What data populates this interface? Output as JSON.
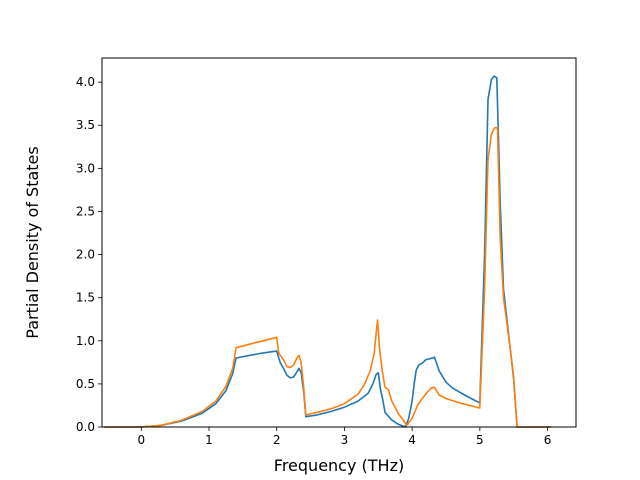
{
  "chart_data": {
    "type": "line",
    "title": "",
    "xlabel": "Frequency (THz)",
    "ylabel": "Partial Density of States",
    "xlim": [
      -0.58,
      6.42
    ],
    "ylim": [
      0,
      4.28
    ],
    "xticks": [
      "0",
      "1",
      "2",
      "3",
      "4",
      "5",
      "6"
    ],
    "xtick_values": [
      0,
      1,
      2,
      3,
      4,
      5,
      6
    ],
    "yticks": [
      "0.0",
      "0.5",
      "1.0",
      "1.5",
      "2.0",
      "2.5",
      "3.0",
      "3.5",
      "4.0"
    ],
    "ytick_values": [
      0,
      0.5,
      1.0,
      1.5,
      2.0,
      2.5,
      3.0,
      3.5,
      4.0
    ],
    "grid": false,
    "legend": "none",
    "series": [
      {
        "color": "#1f77b4",
        "points": [
          [
            -0.55,
            0
          ],
          [
            0,
            0
          ],
          [
            0.3,
            0.02
          ],
          [
            0.6,
            0.07
          ],
          [
            0.9,
            0.16
          ],
          [
            1.1,
            0.27
          ],
          [
            1.25,
            0.42
          ],
          [
            1.35,
            0.62
          ],
          [
            1.4,
            0.8
          ],
          [
            1.6,
            0.83
          ],
          [
            1.8,
            0.86
          ],
          [
            2.0,
            0.88
          ],
          [
            2.05,
            0.75
          ],
          [
            2.1,
            0.68
          ],
          [
            2.15,
            0.6
          ],
          [
            2.2,
            0.57
          ],
          [
            2.25,
            0.58
          ],
          [
            2.3,
            0.64
          ],
          [
            2.33,
            0.68
          ],
          [
            2.36,
            0.63
          ],
          [
            2.4,
            0.4
          ],
          [
            2.43,
            0.12
          ],
          [
            2.6,
            0.14
          ],
          [
            2.8,
            0.18
          ],
          [
            3.0,
            0.23
          ],
          [
            3.2,
            0.3
          ],
          [
            3.35,
            0.39
          ],
          [
            3.42,
            0.5
          ],
          [
            3.47,
            0.61
          ],
          [
            3.5,
            0.63
          ],
          [
            3.53,
            0.45
          ],
          [
            3.57,
            0.3
          ],
          [
            3.6,
            0.17
          ],
          [
            3.7,
            0.08
          ],
          [
            3.8,
            0.03
          ],
          [
            3.9,
            0.0
          ],
          [
            3.95,
            0.1
          ],
          [
            4.0,
            0.3
          ],
          [
            4.03,
            0.5
          ],
          [
            4.06,
            0.66
          ],
          [
            4.1,
            0.72
          ],
          [
            4.15,
            0.74
          ],
          [
            4.2,
            0.78
          ],
          [
            4.25,
            0.79
          ],
          [
            4.3,
            0.8
          ],
          [
            4.33,
            0.81
          ],
          [
            4.4,
            0.65
          ],
          [
            4.5,
            0.52
          ],
          [
            4.6,
            0.45
          ],
          [
            4.8,
            0.36
          ],
          [
            5.0,
            0.28
          ],
          [
            5.07,
            2.0
          ],
          [
            5.12,
            3.8
          ],
          [
            5.17,
            4.03
          ],
          [
            5.21,
            4.07
          ],
          [
            5.25,
            4.05
          ],
          [
            5.3,
            2.6
          ],
          [
            5.35,
            1.6
          ],
          [
            5.45,
            0.9
          ],
          [
            5.5,
            0.55
          ],
          [
            5.55,
            0
          ],
          [
            6.05,
            0
          ]
        ]
      },
      {
        "color": "#ff7f0e",
        "points": [
          [
            -0.55,
            0
          ],
          [
            0,
            0
          ],
          [
            0.3,
            0.02
          ],
          [
            0.6,
            0.08
          ],
          [
            0.9,
            0.18
          ],
          [
            1.1,
            0.3
          ],
          [
            1.25,
            0.47
          ],
          [
            1.35,
            0.68
          ],
          [
            1.4,
            0.92
          ],
          [
            1.6,
            0.96
          ],
          [
            1.8,
            1.0
          ],
          [
            2.0,
            1.04
          ],
          [
            2.03,
            0.86
          ],
          [
            2.1,
            0.78
          ],
          [
            2.15,
            0.7
          ],
          [
            2.2,
            0.69
          ],
          [
            2.25,
            0.72
          ],
          [
            2.3,
            0.8
          ],
          [
            2.33,
            0.83
          ],
          [
            2.36,
            0.75
          ],
          [
            2.4,
            0.45
          ],
          [
            2.43,
            0.14
          ],
          [
            2.6,
            0.17
          ],
          [
            2.8,
            0.21
          ],
          [
            3.0,
            0.27
          ],
          [
            3.2,
            0.38
          ],
          [
            3.3,
            0.5
          ],
          [
            3.38,
            0.65
          ],
          [
            3.44,
            0.85
          ],
          [
            3.47,
            1.1
          ],
          [
            3.49,
            1.24
          ],
          [
            3.52,
            0.9
          ],
          [
            3.56,
            0.65
          ],
          [
            3.6,
            0.46
          ],
          [
            3.65,
            0.43
          ],
          [
            3.7,
            0.3
          ],
          [
            3.8,
            0.15
          ],
          [
            3.87,
            0.08
          ],
          [
            3.92,
            0.02
          ],
          [
            4.0,
            0.1
          ],
          [
            4.08,
            0.25
          ],
          [
            4.15,
            0.33
          ],
          [
            4.22,
            0.4
          ],
          [
            4.28,
            0.45
          ],
          [
            4.33,
            0.46
          ],
          [
            4.4,
            0.37
          ],
          [
            4.5,
            0.33
          ],
          [
            4.7,
            0.28
          ],
          [
            5.0,
            0.22
          ],
          [
            5.07,
            1.6
          ],
          [
            5.12,
            3.1
          ],
          [
            5.17,
            3.4
          ],
          [
            5.22,
            3.47
          ],
          [
            5.26,
            3.47
          ],
          [
            5.3,
            2.2
          ],
          [
            5.35,
            1.5
          ],
          [
            5.45,
            0.9
          ],
          [
            5.5,
            0.58
          ],
          [
            5.55,
            0
          ],
          [
            6.05,
            0
          ]
        ]
      }
    ]
  }
}
